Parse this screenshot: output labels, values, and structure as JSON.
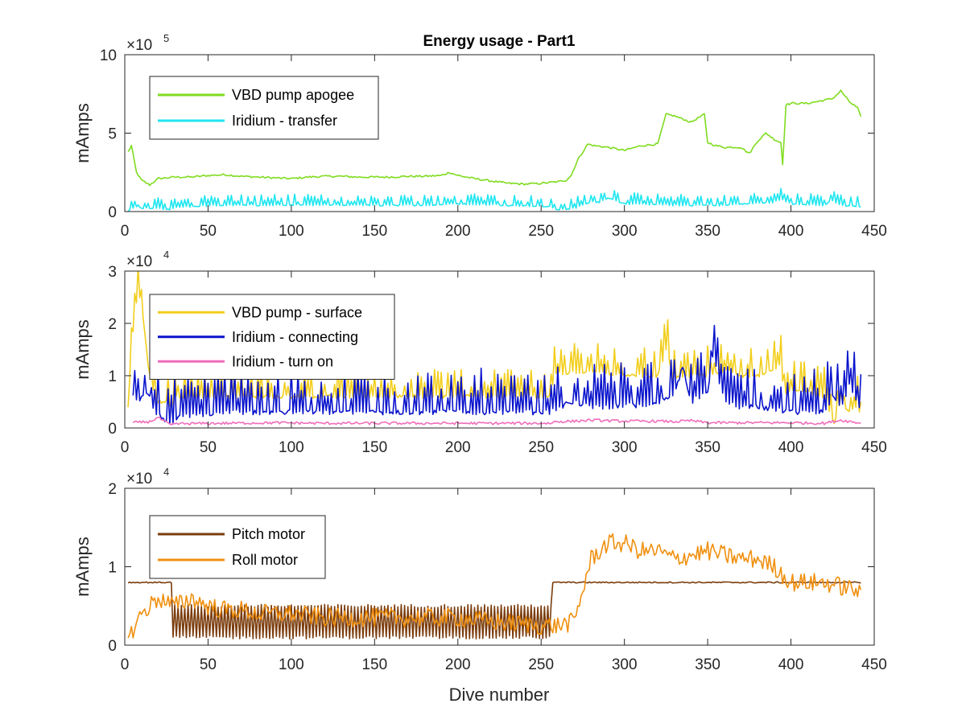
{
  "figure_title": "Energy usage - Part1",
  "xlabel": "Dive number",
  "chart_data": [
    {
      "type": "line",
      "title": "Energy usage - Part1",
      "xlabel": "",
      "ylabel": "mAmps",
      "xlim": [
        0,
        450
      ],
      "ylim": [
        0,
        1000000
      ],
      "xticks": [
        0,
        50,
        100,
        150,
        200,
        250,
        300,
        350,
        400,
        450
      ],
      "xtick_labels": [
        "0",
        "50",
        "100",
        "150",
        "200",
        "250",
        "300",
        "350",
        "400",
        "450"
      ],
      "yticks": [
        0,
        500000,
        1000000
      ],
      "ytick_labels": [
        "0",
        "5",
        "10"
      ],
      "multiplier_base": "×10",
      "multiplier_exp": "5",
      "legend_position": "top-left",
      "series": [
        {
          "name": "VBD pump apogee",
          "color": "#7fdc1f",
          "pattern": "smooth",
          "x": [
            2,
            4,
            7,
            10,
            15,
            20,
            30,
            40,
            50,
            60,
            70,
            80,
            90,
            100,
            110,
            120,
            130,
            140,
            150,
            160,
            170,
            180,
            190,
            195,
            200,
            210,
            220,
            230,
            240,
            250,
            260,
            265,
            268,
            272,
            278,
            282,
            290,
            300,
            310,
            320,
            325,
            330,
            340,
            348,
            350,
            355,
            360,
            370,
            375,
            380,
            385,
            390,
            394,
            395,
            397,
            400,
            410,
            420,
            425,
            430,
            435,
            440,
            442
          ],
          "y": [
            380000,
            420000,
            250000,
            200000,
            170000,
            210000,
            220000,
            220000,
            230000,
            235000,
            225000,
            220000,
            215000,
            210000,
            220000,
            225000,
            225000,
            220000,
            220000,
            220000,
            225000,
            225000,
            230000,
            250000,
            230000,
            210000,
            195000,
            180000,
            175000,
            180000,
            190000,
            200000,
            230000,
            330000,
            430000,
            420000,
            410000,
            390000,
            420000,
            430000,
            620000,
            610000,
            570000,
            620000,
            440000,
            420000,
            410000,
            410000,
            370000,
            450000,
            500000,
            460000,
            440000,
            300000,
            680000,
            690000,
            690000,
            710000,
            720000,
            770000,
            700000,
            660000,
            600000
          ]
        },
        {
          "name": "Iridium - transfer",
          "color": "#1fe6f0",
          "pattern": "spiky",
          "x": [
            2,
            4,
            8,
            10,
            20,
            28,
            30,
            60,
            90,
            120,
            150,
            180,
            200,
            230,
            256,
            258,
            270,
            280,
            286,
            290,
            300,
            330,
            360,
            390,
            394,
            400,
            420,
            424,
            430,
            442
          ],
          "y": [
            0,
            20000,
            40000,
            20000,
            20000,
            10000,
            30000,
            40000,
            40000,
            40000,
            40000,
            40000,
            50000,
            40000,
            30000,
            10000,
            20000,
            60000,
            60000,
            90000,
            50000,
            40000,
            40000,
            60000,
            80000,
            50000,
            40000,
            70000,
            40000,
            30000
          ],
          "spike_amplitude": 55000
        }
      ]
    },
    {
      "type": "line",
      "title": "",
      "xlabel": "",
      "ylabel": "mAmps",
      "xlim": [
        0,
        450
      ],
      "ylim": [
        0,
        30000
      ],
      "xticks": [
        0,
        50,
        100,
        150,
        200,
        250,
        300,
        350,
        400,
        450
      ],
      "xtick_labels": [
        "0",
        "50",
        "100",
        "150",
        "200",
        "250",
        "300",
        "350",
        "400",
        "450"
      ],
      "yticks": [
        0,
        10000,
        20000,
        30000
      ],
      "ytick_labels": [
        "0",
        "1",
        "2",
        "3"
      ],
      "multiplier_base": "×10",
      "multiplier_exp": "4",
      "legend_position": "top-left",
      "series": [
        {
          "name": "VBD pump - surface",
          "color": "#f2ce1c",
          "pattern": "spiky",
          "x": [
            2,
            4,
            6,
            8,
            10,
            12,
            14,
            16,
            18,
            20,
            25,
            28,
            30,
            60,
            90,
            120,
            150,
            180,
            210,
            240,
            256,
            258,
            270,
            280,
            300,
            320,
            326,
            328,
            330,
            340,
            350,
            360,
            370,
            380,
            390,
            394,
            396,
            400,
            410,
            420,
            426,
            430,
            435,
            440,
            442
          ],
          "y": [
            4000,
            15000,
            22000,
            26000,
            24000,
            18000,
            12000,
            8000,
            6000,
            5000,
            5000,
            4000,
            6000,
            6000,
            6000,
            6000,
            6000,
            6000,
            6000,
            6000,
            6000,
            10500,
            10500,
            11000,
            10000,
            10000,
            16000,
            9000,
            9500,
            10000,
            10000,
            11000,
            10000,
            10000,
            11000,
            12000,
            6500,
            7000,
            7000,
            6000,
            1000,
            5000,
            3000,
            4500,
            2000
          ],
          "spike_amplitude": 4500
        },
        {
          "name": "Iridium - connecting",
          "color": "#0a14cc",
          "pattern": "spiky",
          "x": [
            5,
            8,
            12,
            15,
            18,
            22,
            28,
            30,
            60,
            90,
            120,
            150,
            180,
            210,
            240,
            256,
            260,
            270,
            280,
            290,
            300,
            310,
            320,
            330,
            335,
            340,
            350,
            353,
            360,
            370,
            380,
            390,
            400,
            410,
            420,
            425,
            430,
            435,
            440,
            442
          ],
          "y": [
            6000,
            5000,
            7000,
            6000,
            3000,
            2000,
            0,
            2000,
            3000,
            3000,
            3000,
            3000,
            3000,
            3000,
            3000,
            3000,
            4000,
            5000,
            4000,
            4000,
            4500,
            4000,
            5000,
            6000,
            12000,
            5000,
            7000,
            14000,
            5000,
            4000,
            4000,
            3500,
            3000,
            3000,
            3000,
            6000,
            4000,
            8000,
            5000,
            3000
          ],
          "spike_amplitude": 6500
        },
        {
          "name": "Iridium - turn on",
          "color": "#f06dbb",
          "pattern": "jitter",
          "x": [
            5,
            15,
            20,
            25,
            28,
            30,
            60,
            90,
            120,
            150,
            180,
            210,
            240,
            256,
            258,
            270,
            280,
            290,
            300,
            320,
            330,
            340,
            350,
            380,
            400,
            420,
            430,
            440,
            442
          ],
          "y": [
            1000,
            1200,
            2000,
            1000,
            500,
            800,
            900,
            1000,
            900,
            900,
            900,
            900,
            900,
            900,
            1200,
            1300,
            1500,
            1400,
            1300,
            1300,
            1200,
            1400,
            1000,
            1000,
            1000,
            900,
            1500,
            1000,
            1000
          ],
          "spike_amplitude": 500
        }
      ]
    },
    {
      "type": "line",
      "title": "",
      "xlabel": "Dive number",
      "ylabel": "mAmps",
      "xlim": [
        0,
        450
      ],
      "ylim": [
        0,
        20000
      ],
      "xticks": [
        0,
        50,
        100,
        150,
        200,
        250,
        300,
        350,
        400,
        450
      ],
      "xtick_labels": [
        "0",
        "50",
        "100",
        "150",
        "200",
        "250",
        "300",
        "350",
        "400",
        "450"
      ],
      "yticks": [
        0,
        10000,
        20000
      ],
      "ytick_labels": [
        "0",
        "1",
        "2"
      ],
      "multiplier_base": "×10",
      "multiplier_exp": "4",
      "legend_position": "top-left",
      "series": [
        {
          "name": "Pitch motor",
          "color": "#7a3c0c",
          "pattern": "oscillate",
          "x": [
            2,
            28,
            29,
            256,
            257,
            442
          ],
          "y": [
            8000,
            8000,
            3000,
            3000,
            8000,
            8000
          ],
          "osc_range": [
            29,
            256
          ],
          "osc_low": 1000,
          "osc_high": 5000,
          "spike_amplitude": 400
        },
        {
          "name": "Roll motor",
          "color": "#f09010",
          "pattern": "jitter",
          "x": [
            2,
            5,
            10,
            15,
            20,
            25,
            30,
            40,
            50,
            60,
            70,
            80,
            90,
            100,
            120,
            150,
            180,
            200,
            220,
            250,
            260,
            270,
            275,
            280,
            290,
            300,
            310,
            320,
            330,
            340,
            350,
            360,
            370,
            380,
            390,
            400,
            410,
            420,
            430,
            440,
            442
          ],
          "y": [
            500,
            2000,
            4000,
            5000,
            6000,
            5500,
            5000,
            6000,
            5000,
            4500,
            4500,
            4000,
            4000,
            4000,
            3500,
            3500,
            3500,
            3500,
            3000,
            2500,
            2500,
            3000,
            7000,
            11000,
            13000,
            13000,
            12000,
            12000,
            11000,
            11500,
            12000,
            11500,
            11000,
            11000,
            10000,
            8000,
            8000,
            8000,
            7500,
            7000,
            6000
          ],
          "spike_amplitude": 2400
        }
      ]
    }
  ]
}
